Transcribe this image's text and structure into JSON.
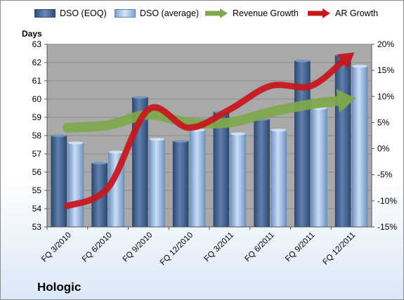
{
  "company": "Hologic",
  "legend": {
    "dso_eoq": "DSO (EOQ)",
    "dso_avg": "DSO (average)",
    "revenue_growth": "Revenue Growth",
    "ar_growth": "AR Growth"
  },
  "colors": {
    "dso_eoq": "#4f6f99",
    "dso_avg": "#a9c6ea",
    "revenue_growth": "#7fa84a",
    "ar_growth": "#c8161d",
    "plot_bg": "#a9a9a9"
  },
  "chart_data": {
    "type": "bar",
    "categories": [
      "FQ 3/2010",
      "FQ 6/2010",
      "FQ 9/2010",
      "FQ 12/2010",
      "FQ 3/2011",
      "FQ 6/2011",
      "FQ 9/2011",
      "FQ 12/2011"
    ],
    "series": [
      {
        "name": "DSO (EOQ)",
        "type": "bar",
        "axis": "left",
        "values": [
          58.0,
          56.5,
          60.1,
          57.7,
          59.3,
          58.9,
          62.1,
          62.4
        ]
      },
      {
        "name": "DSO (average)",
        "type": "bar",
        "axis": "left",
        "values": [
          57.6,
          57.1,
          57.8,
          58.3,
          58.1,
          58.3,
          59.5,
          61.8
        ]
      },
      {
        "name": "Revenue Growth",
        "type": "line",
        "axis": "right",
        "values": [
          4.0,
          4.5,
          6.5,
          5.0,
          5.0,
          7.0,
          8.5,
          9.5
        ]
      },
      {
        "name": "AR Growth",
        "type": "line",
        "axis": "right",
        "values": [
          -11.0,
          -7.5,
          7.5,
          4.0,
          7.5,
          12.0,
          12.0,
          18.0
        ]
      }
    ],
    "ylabel": "Days",
    "ylim": [
      53,
      63
    ],
    "yticks": [
      "53",
      "54",
      "55",
      "56",
      "57",
      "58",
      "59",
      "60",
      "61",
      "62",
      "63"
    ],
    "y2lim": [
      -15,
      20
    ],
    "y2ticks": [
      "-15%",
      "-10%",
      "-5%",
      "0%",
      "5%",
      "10%",
      "15%",
      "20%"
    ],
    "grid": true,
    "legend_position": "top"
  }
}
